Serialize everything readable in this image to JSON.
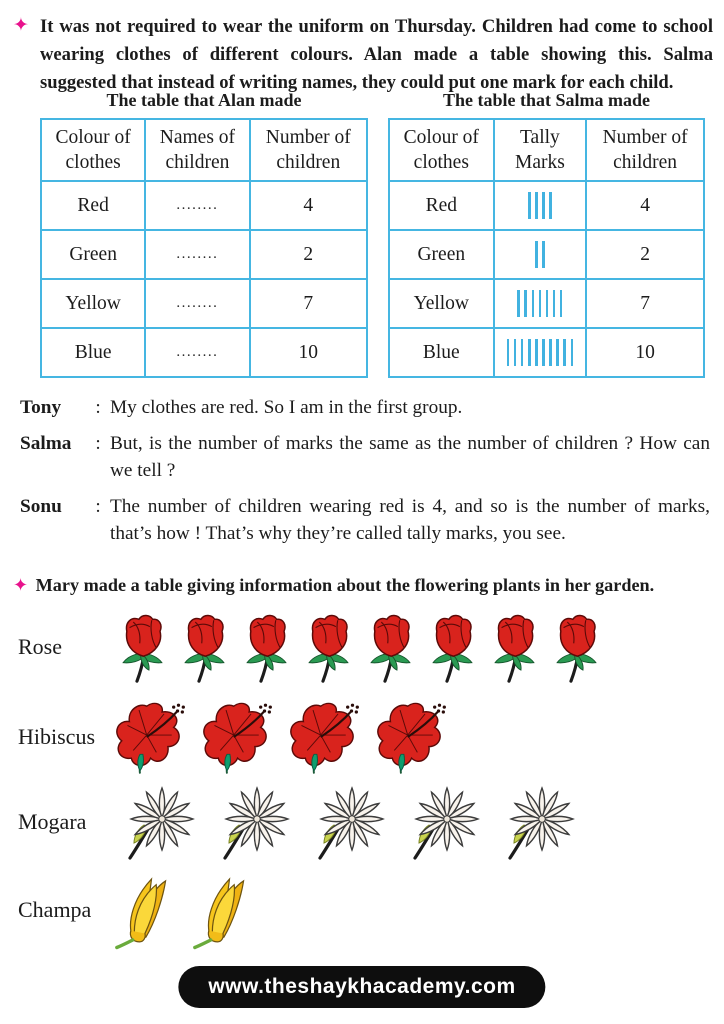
{
  "colors": {
    "accent_blue": "#45b6e2",
    "tally_blue": "#41b2e0",
    "bullet_pink": "#e8128c",
    "footer_bg": "#0e0e0e",
    "flower_red": "#d9231d",
    "champa_yellow": "#f6c51c"
  },
  "intro": {
    "bullet": "✦",
    "text": "It was not required to wear the uniform on Thursday. Children had come to school wearing clothes of different colours. Alan made a table showing this. Salma suggested that instead of writing names, they could put one mark for each child."
  },
  "alan_table": {
    "caption": "The table that Alan made",
    "headers": [
      "Colour of\nclothes",
      "Names of\nchildren",
      "Number of\nchildren"
    ],
    "rows": [
      {
        "colour": "Red",
        "names": "........",
        "number": "4"
      },
      {
        "colour": "Green",
        "names": "........",
        "number": "2"
      },
      {
        "colour": "Yellow",
        "names": "........",
        "number": "7"
      },
      {
        "colour": "Blue",
        "names": "........",
        "number": "10"
      }
    ]
  },
  "salma_table": {
    "caption": "The table that Salma made",
    "headers": [
      "Colour of\nclothes",
      "Tally\nMarks",
      "Number of\nchildren"
    ],
    "rows": [
      {
        "colour": "Red",
        "tally": 4,
        "number": "4"
      },
      {
        "colour": "Green",
        "tally": 2,
        "number": "2"
      },
      {
        "colour": "Yellow",
        "tally": 7,
        "number": "7"
      },
      {
        "colour": "Blue",
        "tally": 10,
        "number": "10"
      }
    ]
  },
  "dialogue": {
    "separator": ":",
    "lines": [
      {
        "speaker": "Tony",
        "text": "My clothes are red. So I am in the first group."
      },
      {
        "speaker": "Salma",
        "text": "But, is the number of marks the same as the number of children ? How can we tell ?"
      },
      {
        "speaker": "Sonu",
        "text": "The number of children wearing red is 4, and so is the number of marks, that’s how !  That’s why they’re called tally marks, you see."
      }
    ]
  },
  "mary": {
    "bullet": "✦",
    "text": "Mary made a table giving information about the flowering plants in her garden."
  },
  "pictograph": {
    "rows": [
      {
        "label": "Rose",
        "flower": "rose",
        "count": 8
      },
      {
        "label": "Hibiscus",
        "flower": "hibiscus",
        "count": 4
      },
      {
        "label": "Mogara",
        "flower": "mogara",
        "count": 5
      },
      {
        "label": "Champa",
        "flower": "champa",
        "count": 2
      }
    ]
  },
  "footer": {
    "text": "www.theshaykhacademy.com"
  },
  "chart_data": {
    "type": "pictograph",
    "title": "Mary made a table giving information about the flowering plants in her garden.",
    "categories": [
      "Rose",
      "Hibiscus",
      "Mogara",
      "Champa"
    ],
    "values": [
      8,
      4,
      5,
      2
    ],
    "related_tables": [
      {
        "title": "The table that Alan made",
        "columns": [
          "Colour of clothes",
          "Names of children",
          "Number of children"
        ],
        "rows": [
          [
            "Red",
            "........",
            4
          ],
          [
            "Green",
            "........",
            2
          ],
          [
            "Yellow",
            "........",
            7
          ],
          [
            "Blue",
            "........",
            10
          ]
        ]
      },
      {
        "title": "The table that Salma made",
        "columns": [
          "Colour of clothes",
          "Tally Marks",
          "Number of children"
        ],
        "rows": [
          [
            "Red",
            4,
            4
          ],
          [
            "Green",
            2,
            2
          ],
          [
            "Yellow",
            7,
            7
          ],
          [
            "Blue",
            10,
            10
          ]
        ]
      }
    ]
  }
}
